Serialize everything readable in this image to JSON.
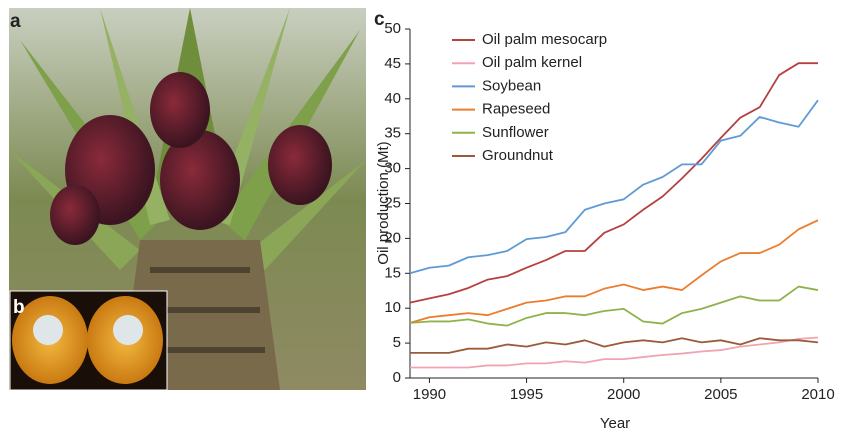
{
  "panel_labels": [
    "a",
    "b",
    "c"
  ],
  "chart_data": {
    "type": "line",
    "ylabel": "Oil production (Mt)",
    "xlabel": "Year",
    "x": [
      1989,
      1990,
      1991,
      1992,
      1993,
      1994,
      1995,
      1996,
      1997,
      1998,
      1999,
      2000,
      2001,
      2002,
      2003,
      2004,
      2005,
      2006,
      2007,
      2008,
      2009,
      2010
    ],
    "xlim": [
      1989,
      2010
    ],
    "xticks": [
      1990,
      1995,
      2000,
      2005,
      2010
    ],
    "ylim": [
      0,
      50
    ],
    "yticks": [
      0,
      5,
      10,
      15,
      20,
      25,
      30,
      35,
      40,
      45,
      50
    ],
    "legend": "upper-left",
    "series": [
      {
        "name": "Oil palm mesocarp",
        "color": "#b5403f",
        "values": [
          10.8,
          11.4,
          12.0,
          12.9,
          14.1,
          14.6,
          15.8,
          16.9,
          18.2,
          18.2,
          20.8,
          22.0,
          24.1,
          26.0,
          28.6,
          31.4,
          34.4,
          37.3,
          38.8,
          43.4,
          45.1,
          45.1
        ]
      },
      {
        "name": "Oil palm kernel",
        "color": "#f2a3b3",
        "values": [
          1.5,
          1.5,
          1.5,
          1.5,
          1.8,
          1.8,
          2.1,
          2.1,
          2.4,
          2.2,
          2.7,
          2.7,
          3.0,
          3.3,
          3.5,
          3.8,
          4.0,
          4.5,
          4.8,
          5.1,
          5.6,
          5.8
        ]
      },
      {
        "name": "Soybean",
        "color": "#5e9bd6",
        "values": [
          15.0,
          15.8,
          16.1,
          17.3,
          17.6,
          18.2,
          19.9,
          20.2,
          20.9,
          24.1,
          25.0,
          25.6,
          27.7,
          28.8,
          30.6,
          30.6,
          34.0,
          34.7,
          37.4,
          36.6,
          36.0,
          39.8
        ]
      },
      {
        "name": "Rapeseed",
        "color": "#ec7d2e",
        "values": [
          7.9,
          8.7,
          9.0,
          9.3,
          9.0,
          9.9,
          10.8,
          11.1,
          11.7,
          11.7,
          12.8,
          13.4,
          12.6,
          13.1,
          12.6,
          14.7,
          16.7,
          17.9,
          17.9,
          19.1,
          21.3,
          22.6
        ]
      },
      {
        "name": "Sunflower",
        "color": "#8fb24c",
        "values": [
          7.9,
          8.1,
          8.1,
          8.4,
          7.8,
          7.5,
          8.6,
          9.3,
          9.3,
          9.0,
          9.6,
          9.9,
          8.1,
          7.8,
          9.3,
          9.9,
          10.8,
          11.7,
          11.1,
          11.1,
          13.1,
          12.6
        ]
      },
      {
        "name": "Groundnut",
        "color": "#9a5b3b",
        "values": [
          3.6,
          3.6,
          3.6,
          4.2,
          4.2,
          4.8,
          4.5,
          5.1,
          4.8,
          5.4,
          4.5,
          5.1,
          5.4,
          5.1,
          5.7,
          5.1,
          5.4,
          4.8,
          5.7,
          5.4,
          5.4,
          5.1
        ]
      }
    ]
  }
}
